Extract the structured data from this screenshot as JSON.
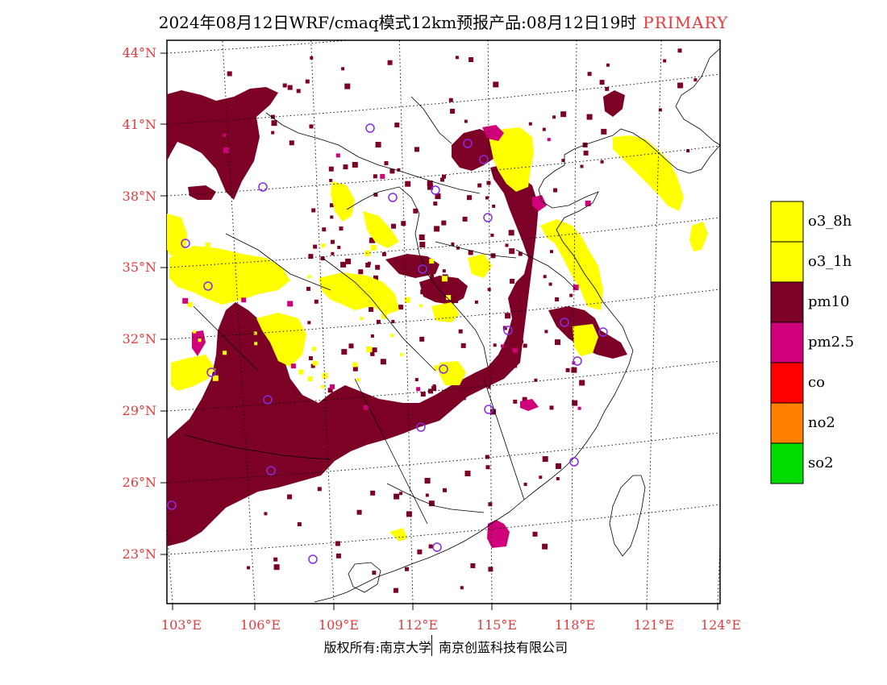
{
  "title": {
    "main": "2024年08月12日WRF/cmaq模式12km预报产品:08月12日19时",
    "tag": "PRIMARY"
  },
  "colors": {
    "o3_8h": "#ffff00",
    "o3_1h": "#ffff00",
    "pm10": "#7d0026",
    "pm2_5": "#d0007a",
    "co": "#ff0000",
    "no2": "#ff8000",
    "so2": "#00dd00",
    "station": "#8a2be2",
    "axis_label": "#e8393b"
  },
  "axes": {
    "lat_labels": [
      "44°N",
      "41°N",
      "38°N",
      "35°N",
      "32°N",
      "29°N",
      "26°N",
      "23°N"
    ],
    "lon_labels": [
      "103°E",
      "106°E",
      "109°E",
      "112°E",
      "115°E",
      "118°E",
      "121°E",
      "124°E"
    ],
    "lon_range": [
      103,
      124
    ],
    "lat_range": [
      21,
      44
    ]
  },
  "legend": {
    "items": [
      {
        "key": "o3_8h",
        "label": "o3_8h"
      },
      {
        "key": "o3_1h",
        "label": "o3_1h"
      },
      {
        "key": "pm10",
        "label": "pm10"
      },
      {
        "key": "pm2_5",
        "label": "pm2.5"
      },
      {
        "key": "co",
        "label": "co"
      },
      {
        "key": "no2",
        "label": "no2"
      },
      {
        "key": "so2",
        "label": "so2"
      }
    ]
  },
  "footer": {
    "left": "版权所有:南京大学",
    "right": "南京创蓝科技有限公司"
  }
}
